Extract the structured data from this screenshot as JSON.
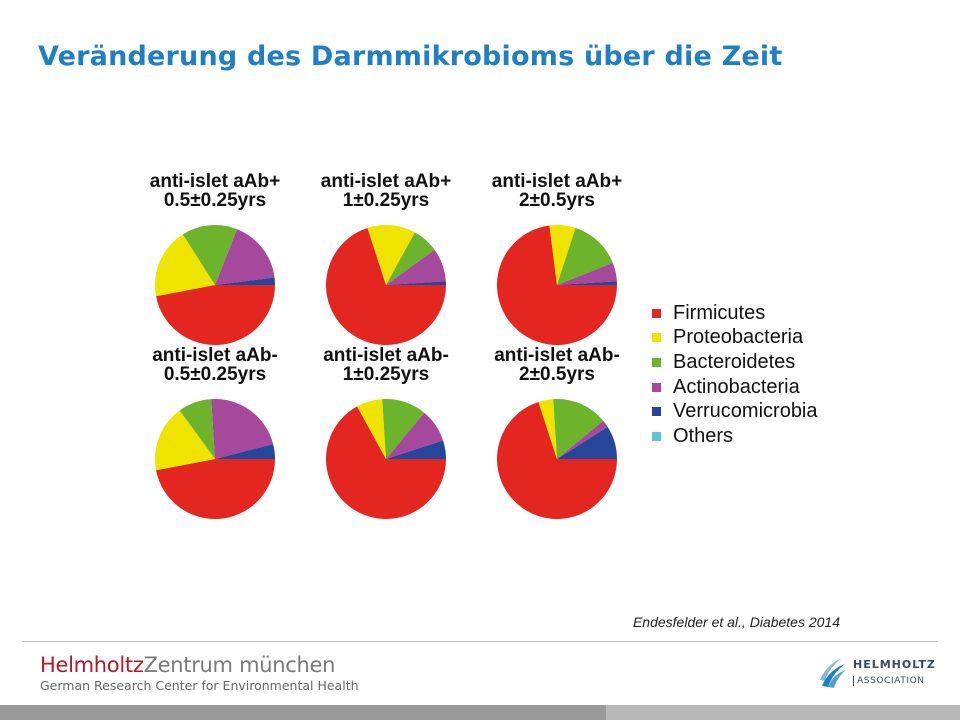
{
  "slide": {
    "title": "Veränderung des Darmmikrobioms über die Zeit",
    "citation": "Endesfelder et al., Diabetes 2014"
  },
  "footer": {
    "brand_part1": "Helmholtz",
    "brand_part2": "Zentrum münchen",
    "brand_sub": "German Research Center for Environmental Health",
    "association_name": "HELMHOLTZ",
    "association_sub": "ASSOCIATION"
  },
  "colors": {
    "title": "#1f7fc2",
    "Firmicutes": "#e3261f",
    "Proteobacteria": "#efe300",
    "Bacteroidetes": "#6cb42c",
    "Actinobacteria": "#a6489b",
    "Verrucomicrobia": "#25469a",
    "Others": "#5bc3dc"
  },
  "chart_data": {
    "type": "pie",
    "legend": [
      "Firmicutes",
      "Proteobacteria",
      "Bacteroidetes",
      "Actinobacteria",
      "Verrucomicrobia",
      "Others"
    ],
    "legend_position": "right",
    "pies": [
      {
        "title_line1": "anti-islet aAb+",
        "title_line2": "0.5±0.25yrs",
        "values": [
          47,
          19,
          15,
          17,
          2,
          0
        ]
      },
      {
        "title_line1": "anti-islet aAb+",
        "title_line2": "1±0.25yrs",
        "values": [
          70,
          13,
          7,
          9,
          1,
          0
        ]
      },
      {
        "title_line1": "anti-islet aAb+",
        "title_line2": "2±0.5yrs",
        "values": [
          73,
          7,
          14,
          5,
          1,
          0
        ]
      },
      {
        "title_line1": "anti-islet aAb-",
        "title_line2": "0.5±0.25yrs",
        "values": [
          47,
          18,
          9,
          22,
          4,
          0
        ]
      },
      {
        "title_line1": "anti-islet aAb-",
        "title_line2": "1±0.25yrs",
        "values": [
          67,
          7,
          12,
          9,
          5,
          0
        ]
      },
      {
        "title_line1": "anti-islet aAb-",
        "title_line2": "2±0.5yrs",
        "values": [
          70,
          4,
          15,
          2,
          9,
          0
        ]
      }
    ]
  }
}
